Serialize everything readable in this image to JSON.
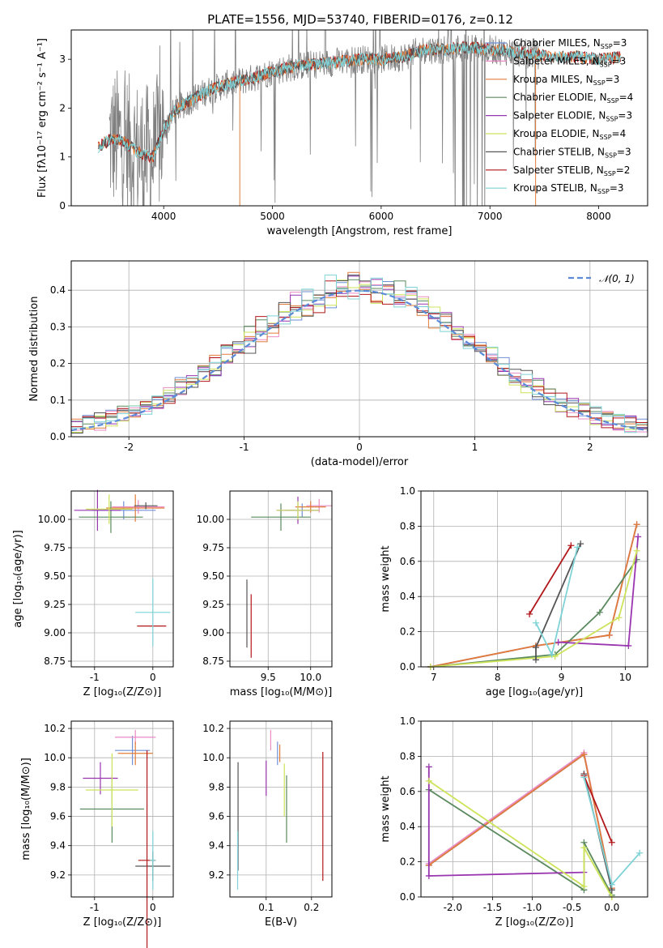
{
  "title": "PLATE=1556, MJD=53740, FIBERID=0176, z=0.12",
  "colors": {
    "chabrier_miles": "#6f8fd6",
    "salpeter_miles": "#e98bc4",
    "kroupa_miles": "#e07c3a",
    "chabrier_elodie": "#5b8a5f",
    "salpeter_elodie": "#9a35b0",
    "kroupa_elodie": "#cde35a",
    "chabrier_stelib": "#555555",
    "salpeter_stelib": "#b2171b",
    "kroupa_stelib": "#7fd3d6",
    "data": "#808080",
    "normal": "#5b8ad8"
  },
  "legend": [
    {
      "pre": "Chabrier MILES, N",
      "sub": "SSP",
      "post": "=3",
      "color": "chabrier_miles"
    },
    {
      "pre": "Salpeter MILES, N",
      "sub": "SSP",
      "post": "=3",
      "color": "salpeter_miles"
    },
    {
      "pre": "Kroupa MILES, N",
      "sub": "SSP",
      "post": "=3",
      "color": "kroupa_miles"
    },
    {
      "pre": "Chabrier ELODIE, N",
      "sub": "SSP",
      "post": "=4",
      "color": "chabrier_elodie"
    },
    {
      "pre": "Salpeter ELODIE, N",
      "sub": "SSP",
      "post": "=3",
      "color": "salpeter_elodie"
    },
    {
      "pre": "Kroupa ELODIE, N",
      "sub": "SSP",
      "post": "=4",
      "color": "kroupa_elodie"
    },
    {
      "pre": "Chabrier STELIB, N",
      "sub": "SSP",
      "post": "=3",
      "color": "chabrier_stelib"
    },
    {
      "pre": "Salpeter STELIB, N",
      "sub": "SSP",
      "post": "=2",
      "color": "salpeter_stelib"
    },
    {
      "pre": "Kroupa STELIB, N",
      "sub": "SSP",
      "post": "=3",
      "color": "kroupa_stelib"
    }
  ],
  "chart_data": [
    {
      "id": "spectrum",
      "type": "line",
      "xlabel": "wavelength [Angstrom, rest frame]",
      "ylabel": "Flux [fλ10⁻¹⁷ erg cm⁻² s⁻¹ A⁻¹]",
      "xlim": [
        3150,
        8450
      ],
      "ylim": [
        0,
        3.6
      ],
      "xticks": [
        4000,
        5000,
        6000,
        7000,
        8000
      ],
      "yticks": [
        0,
        1,
        2,
        3
      ],
      "profile": {
        "x": [
          3400,
          3500,
          3600,
          3700,
          3800,
          3900,
          4000,
          4100,
          4200,
          4400,
          4600,
          4800,
          5000,
          5200,
          5400,
          5600,
          5800,
          6000,
          6200,
          6400,
          6600,
          6800,
          7000,
          7200,
          7400,
          7600,
          7800,
          8000,
          8200
        ],
        "y": [
          1.2,
          1.35,
          1.35,
          1.2,
          1.05,
          1.0,
          1.55,
          1.95,
          2.1,
          2.35,
          2.5,
          2.6,
          2.75,
          2.85,
          2.9,
          2.95,
          3.0,
          3.0,
          3.05,
          3.2,
          3.2,
          3.25,
          3.2,
          3.15,
          3.1,
          3.05,
          3.05,
          3.0,
          3.05
        ]
      },
      "data_xrange": [
        3500,
        7450
      ]
    },
    {
      "id": "residuals",
      "type": "histogram",
      "xlabel": "(data-model)/error",
      "ylabel": "Normed distribution",
      "xlim": [
        -2.5,
        2.5
      ],
      "ylim": [
        0,
        0.48
      ],
      "xticks": [
        -2,
        -1,
        0,
        1,
        2
      ],
      "yticks": [
        0.0,
        0.1,
        0.2,
        0.3,
        0.4
      ],
      "bin_width": 0.1,
      "normal_label": "𝒩(0, 1)"
    },
    {
      "id": "age_vs_Z",
      "type": "scatter",
      "xlabel": "Z [log₁₀(Z/Z⊙)]",
      "ylabel": "age  [log₁₀(age/yr)]",
      "xlim": [
        -1.4,
        0.35
      ],
      "ylim": [
        8.7,
        10.25
      ],
      "xticks": [
        -1,
        0
      ],
      "yticks": [
        8.75,
        9.0,
        9.25,
        9.5,
        9.75,
        10.0
      ],
      "points": [
        {
          "c": "chabrier_miles",
          "x": -0.5,
          "y": 10.08,
          "xe": 0.55,
          "ye": 0.08
        },
        {
          "c": "salpeter_miles",
          "x": -0.25,
          "y": 10.11,
          "xe": 0.45,
          "ye": 0.06
        },
        {
          "c": "kroupa_miles",
          "x": -0.3,
          "y": 10.1,
          "xe": 0.5,
          "ye": 0.12
        },
        {
          "c": "chabrier_elodie",
          "x": -0.72,
          "y": 10.02,
          "xe": 0.55,
          "ye": 0.14
        },
        {
          "c": "salpeter_elodie",
          "x": -0.95,
          "y": 10.08,
          "xe": 0.4,
          "ye": 0.18
        },
        {
          "c": "kroupa_elodie",
          "x": -0.75,
          "y": 10.09,
          "xe": 0.4,
          "ye": 0.13
        },
        {
          "c": "chabrier_stelib",
          "x": -0.12,
          "y": 10.12,
          "xe": 0.2,
          "ye": 0.03
        },
        {
          "c": "salpeter_stelib",
          "x": -0.02,
          "y": 9.06,
          "xe": 0.25,
          "ye": 0.0
        },
        {
          "c": "kroupa_stelib",
          "x": 0.0,
          "y": 9.18,
          "xe": 0.3,
          "ye": 0.3
        }
      ]
    },
    {
      "id": "age_vs_mass",
      "type": "scatter",
      "xlabel": "mass [log₁₀(M/M⊙)]",
      "ylabel": "",
      "xlim": [
        9.05,
        10.25
      ],
      "ylim": [
        8.7,
        10.25
      ],
      "xticks": [
        9.5,
        10.0
      ],
      "yticks": [
        8.75,
        9.0,
        9.25,
        9.5,
        9.75,
        10.0
      ],
      "points": [
        {
          "c": "chabrier_miles",
          "x": 9.9,
          "y": 10.08,
          "xe": 0.2,
          "ye": 0.06
        },
        {
          "c": "salpeter_miles",
          "x": 10.1,
          "y": 10.12,
          "xe": 0.15,
          "ye": 0.06
        },
        {
          "c": "kroupa_miles",
          "x": 10.0,
          "y": 10.11,
          "xe": 0.18,
          "ye": 0.05
        },
        {
          "c": "chabrier_elodie",
          "x": 9.65,
          "y": 10.02,
          "xe": 0.35,
          "ye": 0.12
        },
        {
          "c": "salpeter_elodie",
          "x": 9.85,
          "y": 10.08,
          "xe": 0.25,
          "ye": 0.12
        },
        {
          "c": "kroupa_elodie",
          "x": 9.85,
          "y": 10.08,
          "xe": 0.25,
          "ye": 0.08
        },
        {
          "c": "chabrier_stelib",
          "x": 9.25,
          "y": 9.17,
          "xe": 0.0,
          "ye": 0.3
        },
        {
          "c": "salpeter_stelib",
          "x": 9.3,
          "y": 9.06,
          "xe": 0.0,
          "ye": 0.28
        },
        {
          "c": "kroupa_stelib",
          "x": 9.35,
          "y": 9.17,
          "xe": 0.0,
          "ye": 0.0
        }
      ]
    },
    {
      "id": "mass_vs_Z",
      "type": "scatter",
      "xlabel": "Z [log₁₀(Z/Z⊙)]",
      "ylabel": "mass [log₁₀(M/M⊙)]",
      "xlim": [
        -1.4,
        0.35
      ],
      "ylim": [
        9.05,
        10.25
      ],
      "xticks": [
        -1,
        0
      ],
      "yticks": [
        9.2,
        9.4,
        9.6,
        9.8,
        10.0,
        10.2
      ],
      "points": [
        {
          "c": "chabrier_miles",
          "x": -0.35,
          "y": 10.05,
          "xe": 0.3,
          "ye": 0.1
        },
        {
          "c": "salpeter_miles",
          "x": -0.3,
          "y": 10.14,
          "xe": 0.35,
          "ye": 0.05
        },
        {
          "c": "kroupa_miles",
          "x": -0.3,
          "y": 10.03,
          "xe": 0.3,
          "ye": 0.08
        },
        {
          "c": "chabrier_elodie",
          "x": -0.7,
          "y": 9.65,
          "xe": 0.55,
          "ye": 0.23
        },
        {
          "c": "salpeter_elodie",
          "x": -0.9,
          "y": 9.86,
          "xe": 0.3,
          "ye": 0.11
        },
        {
          "c": "kroupa_elodie",
          "x": -0.7,
          "y": 9.78,
          "xe": 0.45,
          "ye": 0.25
        },
        {
          "c": "chabrier_stelib",
          "x": 0.0,
          "y": 9.26,
          "xe": 0.3,
          "ye": 0.1
        },
        {
          "c": "salpeter_stelib",
          "x": -0.1,
          "y": 9.3,
          "xe": 0.15,
          "ye": 0.75
        },
        {
          "c": "kroupa_stelib",
          "x": 0.0,
          "y": 9.3,
          "xe": 0.05,
          "ye": 0.2
        }
      ]
    },
    {
      "id": "mass_vs_ebv",
      "type": "scatter",
      "xlabel": "E(B-V)",
      "ylabel": "",
      "xlim": [
        0.02,
        0.245
      ],
      "ylim": [
        9.05,
        10.25
      ],
      "xticks": [
        0.1,
        0.2
      ],
      "yticks": [
        9.2,
        9.4,
        9.6,
        9.8,
        10.0,
        10.2
      ],
      "points": [
        {
          "c": "chabrier_miles",
          "x": 0.125,
          "y": 10.03,
          "xe": 0,
          "ye": 0.08
        },
        {
          "c": "salpeter_miles",
          "x": 0.11,
          "y": 10.12,
          "xe": 0,
          "ye": 0.07
        },
        {
          "c": "kroupa_miles",
          "x": 0.13,
          "y": 10.03,
          "xe": 0,
          "ye": 0.06
        },
        {
          "c": "chabrier_elodie",
          "x": 0.145,
          "y": 9.65,
          "xe": 0,
          "ye": 0.23
        },
        {
          "c": "salpeter_elodie",
          "x": 0.1,
          "y": 9.86,
          "xe": 0,
          "ye": 0.12
        },
        {
          "c": "kroupa_elodie",
          "x": 0.14,
          "y": 9.78,
          "xe": 0,
          "ye": 0.18
        },
        {
          "c": "chabrier_stelib",
          "x": 0.038,
          "y": 9.6,
          "xe": 0,
          "ye": 0.37
        },
        {
          "c": "salpeter_stelib",
          "x": 0.225,
          "y": 9.6,
          "xe": 0,
          "ye": 0.44
        },
        {
          "c": "kroupa_stelib",
          "x": 0.037,
          "y": 9.3,
          "xe": 0,
          "ye": 0.2
        }
      ]
    },
    {
      "id": "weight_vs_age",
      "type": "line",
      "xlabel": "age  [log₁₀(age/yr)]",
      "ylabel": "mass weight",
      "xlim": [
        6.8,
        10.35
      ],
      "ylim": [
        0,
        1
      ],
      "xticks": [
        7,
        8,
        9,
        10
      ],
      "yticks": [
        0.0,
        0.2,
        0.4,
        0.6,
        0.8,
        1.0
      ],
      "series": [
        {
          "c": "chabrier_miles",
          "x": [
            6.95,
            8.6,
            9.75,
            10.18
          ],
          "y": [
            0.0,
            0.12,
            0.18,
            0.81
          ]
        },
        {
          "c": "salpeter_miles",
          "x": [
            6.95,
            8.6,
            9.75,
            10.18
          ],
          "y": [
            0.0,
            0.12,
            0.18,
            0.81
          ]
        },
        {
          "c": "kroupa_miles",
          "x": [
            6.95,
            8.6,
            9.75,
            10.18
          ],
          "y": [
            0.0,
            0.12,
            0.18,
            0.81
          ]
        },
        {
          "c": "chabrier_elodie",
          "x": [
            6.95,
            8.9,
            9.6,
            10.18
          ],
          "y": [
            0.0,
            0.07,
            0.31,
            0.61
          ]
        },
        {
          "c": "salpeter_elodie",
          "x": [
            8.95,
            10.05,
            10.2
          ],
          "y": [
            0.14,
            0.12,
            0.74
          ]
        },
        {
          "c": "kroupa_elodie",
          "x": [
            6.95,
            8.9,
            9.9,
            10.18
          ],
          "y": [
            0.0,
            0.06,
            0.28,
            0.66
          ]
        },
        {
          "c": "chabrier_stelib",
          "x": [
            8.6,
            8.6,
            9.3
          ],
          "y": [
            0.04,
            0.11,
            0.7
          ]
        },
        {
          "c": "salpeter_stelib",
          "x": [
            8.5,
            9.15
          ],
          "y": [
            0.3,
            0.69
          ]
        },
        {
          "c": "kroupa_stelib",
          "x": [
            8.6,
            8.85,
            9.25
          ],
          "y": [
            0.25,
            0.07,
            0.68
          ]
        }
      ]
    },
    {
      "id": "weight_vs_Z",
      "type": "line",
      "xlabel": "Z [log₁₀(Z/Z⊙)]",
      "ylabel": "mass weight",
      "xlim": [
        -2.4,
        0.45
      ],
      "ylim": [
        0,
        1
      ],
      "xticks": [
        -2.0,
        -1.5,
        -1.0,
        -0.5,
        0.0
      ],
      "yticks": [
        0.0,
        0.2,
        0.4,
        0.6,
        0.8,
        1.0
      ],
      "series": [
        {
          "c": "chabrier_miles",
          "x": [
            -2.3,
            -0.35,
            0.0
          ],
          "y": [
            0.18,
            0.81,
            0.05
          ]
        },
        {
          "c": "salpeter_miles",
          "x": [
            -2.3,
            -0.35,
            0.0
          ],
          "y": [
            0.19,
            0.82,
            0.05
          ]
        },
        {
          "c": "kroupa_miles",
          "x": [
            -2.3,
            -0.35,
            0.0
          ],
          "y": [
            0.18,
            0.81,
            0.05
          ]
        },
        {
          "c": "chabrier_elodie",
          "x": [
            -2.3,
            -0.35,
            -0.35,
            0.0
          ],
          "y": [
            0.61,
            0.04,
            0.31,
            0.01
          ]
        },
        {
          "c": "salpeter_elodie",
          "x": [
            -2.3,
            -2.3,
            -0.35
          ],
          "y": [
            0.74,
            0.12,
            0.14
          ]
        },
        {
          "c": "kroupa_elodie",
          "x": [
            -2.3,
            -0.35,
            -0.35,
            0.0
          ],
          "y": [
            0.66,
            0.06,
            0.28,
            0.0
          ]
        },
        {
          "c": "chabrier_stelib",
          "x": [
            -0.35,
            0.0
          ],
          "y": [
            0.7,
            0.04
          ]
        },
        {
          "c": "salpeter_stelib",
          "x": [
            -0.35,
            0.0
          ],
          "y": [
            0.69,
            0.31
          ]
        },
        {
          "c": "kroupa_stelib",
          "x": [
            -0.35,
            0.0,
            0.35
          ],
          "y": [
            0.68,
            0.07,
            0.25
          ]
        }
      ]
    }
  ]
}
